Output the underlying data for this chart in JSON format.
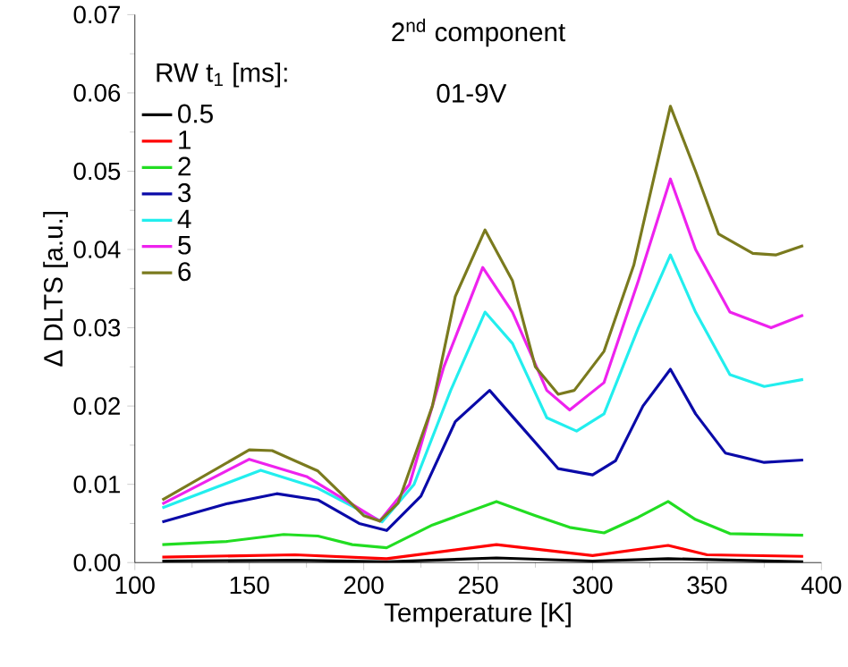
{
  "chart_data": {
    "type": "line",
    "title": "2$^{nd}$ component",
    "xlabel": "Temperature [K]",
    "ylabel": "Δ DLTS [a.u.]",
    "legend_title": "RW t$_{1}$ [ms]:",
    "legend": "top left",
    "annotations": [
      "01-9V"
    ],
    "xlim": [
      100,
      400
    ],
    "xticks": [
      100,
      150,
      200,
      250,
      300,
      350,
      400
    ],
    "ylim": [
      0,
      0.07
    ],
    "yticks": [
      {
        "value": 0,
        "label": "0.00"
      },
      {
        "value": 0.01,
        "label": "0.01"
      },
      {
        "value": 0.02,
        "label": "0.02"
      },
      {
        "value": 0.03,
        "label": "0.03"
      },
      {
        "value": 0.04,
        "label": "0.04"
      },
      {
        "value": 0.05,
        "label": "0.05"
      },
      {
        "value": 0.06,
        "label": "0.06"
      },
      {
        "value": 0.07,
        "label": "0.07"
      }
    ],
    "series": [
      {
        "name": "0.5",
        "color": "#000000",
        "x": [
          112,
          170,
          210,
          258,
          300,
          333,
          392
        ],
        "values": [
          0.0002,
          0.0003,
          0.0001,
          0.0006,
          0.0002,
          0.0005,
          0.0001
        ]
      },
      {
        "name": "1",
        "color": "#ff0000",
        "x": [
          112,
          170,
          210,
          258,
          300,
          333,
          350,
          392
        ],
        "values": [
          0.0007,
          0.001,
          0.0005,
          0.0023,
          0.0009,
          0.0022,
          0.001,
          0.0008
        ]
      },
      {
        "name": "2",
        "color": "#22dd22",
        "x": [
          112,
          140,
          165,
          180,
          195,
          210,
          230,
          258,
          275,
          290,
          305,
          320,
          333,
          345,
          360,
          392
        ],
        "values": [
          0.0023,
          0.0027,
          0.0036,
          0.0034,
          0.0023,
          0.0019,
          0.0048,
          0.0078,
          0.006,
          0.0045,
          0.0038,
          0.0058,
          0.0078,
          0.0055,
          0.0037,
          0.0035
        ]
      },
      {
        "name": "3",
        "color": "#0a0aa8",
        "x": [
          112,
          140,
          162,
          180,
          198,
          210,
          225,
          240,
          255,
          270,
          285,
          300,
          310,
          322,
          334,
          345,
          358,
          375,
          392
        ],
        "values": [
          0.0052,
          0.0075,
          0.0088,
          0.008,
          0.005,
          0.0041,
          0.0085,
          0.018,
          0.022,
          0.017,
          0.012,
          0.0112,
          0.013,
          0.02,
          0.0247,
          0.019,
          0.014,
          0.0128,
          0.0131
        ]
      },
      {
        "name": "4",
        "color": "#22eeee",
        "x": [
          112,
          155,
          180,
          208,
          222,
          238,
          253,
          265,
          280,
          293,
          305,
          320,
          334,
          345,
          360,
          375,
          392
        ],
        "values": [
          0.007,
          0.0118,
          0.0095,
          0.0052,
          0.01,
          0.022,
          0.032,
          0.028,
          0.0185,
          0.0168,
          0.019,
          0.03,
          0.0393,
          0.032,
          0.024,
          0.0225,
          0.0234
        ]
      },
      {
        "name": "5",
        "color": "#ee22ee",
        "x": [
          112,
          150,
          175,
          207,
          220,
          235,
          252,
          265,
          280,
          290,
          305,
          320,
          334,
          345,
          360,
          378,
          392
        ],
        "values": [
          0.0075,
          0.0132,
          0.011,
          0.0053,
          0.01,
          0.025,
          0.0377,
          0.032,
          0.022,
          0.0195,
          0.023,
          0.036,
          0.049,
          0.04,
          0.032,
          0.03,
          0.0316
        ]
      },
      {
        "name": "6",
        "color": "#7a7a1e",
        "x": [
          112,
          150,
          160,
          180,
          200,
          207,
          215,
          230,
          240,
          253,
          265,
          275,
          285,
          292,
          305,
          318,
          334,
          345,
          355,
          370,
          380,
          392
        ],
        "values": [
          0.008,
          0.0144,
          0.0143,
          0.0117,
          0.006,
          0.0053,
          0.0076,
          0.02,
          0.034,
          0.0425,
          0.036,
          0.025,
          0.0215,
          0.022,
          0.027,
          0.038,
          0.0583,
          0.05,
          0.042,
          0.0395,
          0.0393,
          0.0405
        ]
      }
    ]
  }
}
